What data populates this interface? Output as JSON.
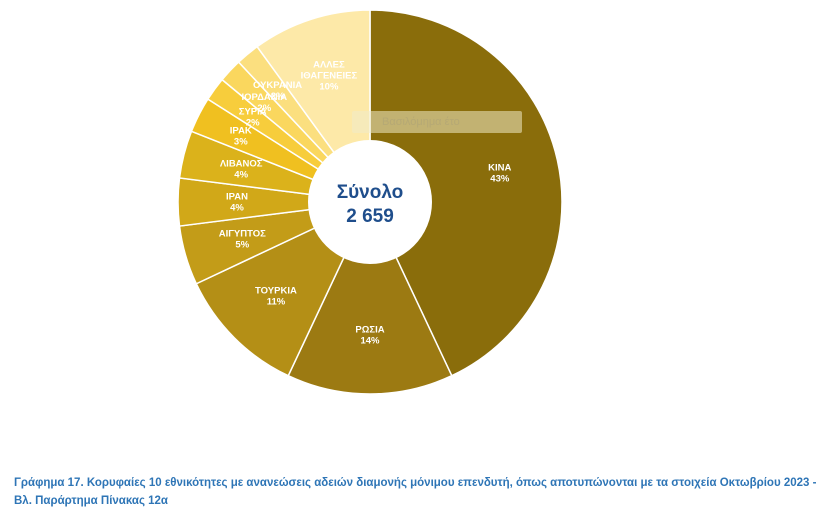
{
  "chart_data": {
    "type": "pie",
    "subtype": "donut",
    "center_title": "Σύνολο",
    "center_value": "2 659",
    "slices": [
      {
        "label": "ΚΙΝΑ",
        "percent_label": "43%",
        "value": 43,
        "color": "#8a6d0b",
        "label_color": "#ffffff"
      },
      {
        "label": "ΡΩΣΙΑ",
        "percent_label": "14%",
        "value": 14,
        "color": "#9c7a12",
        "label_color": "#ffffff"
      },
      {
        "label": "ΤΟΥΡΚΙΑ",
        "percent_label": "11%",
        "value": 11,
        "color": "#b48f16",
        "label_color": "#ffffff"
      },
      {
        "label": "ΑΙΓΥΠΤΟΣ",
        "percent_label": "5%",
        "value": 5,
        "color": "#c39c18",
        "label_color": "#ffffff"
      },
      {
        "label": "ΙΡΑΝ",
        "percent_label": "4%",
        "value": 4,
        "color": "#d1a818",
        "label_color": "#ffffff"
      },
      {
        "label": "ΛΙΒΑΝΟΣ",
        "percent_label": "4%",
        "value": 4,
        "color": "#dbb21b",
        "label_color": "#ffffff"
      },
      {
        "label": "ΙΡΑΚ",
        "percent_label": "3%",
        "value": 3,
        "color": "#f0c020",
        "label_color": "#ffffff"
      },
      {
        "label": "ΣΥΡΙΑ",
        "percent_label": "2%",
        "value": 2,
        "color": "#f7cd3c",
        "label_color": "#ffffff"
      },
      {
        "label": "ΙΟΡΔΑΝΙΑ",
        "percent_label": "2%",
        "value": 2,
        "color": "#fad75e",
        "label_color": "#ffffff"
      },
      {
        "label": "ΟΥΚΡΑΝΙΑ",
        "percent_label": "2%",
        "value": 2,
        "color": "#fbdf7f",
        "label_color": "#ffffff"
      },
      {
        "label": "ΑΛΛΕΣ ΙΘΑΓΕΝΕΙΕΣ",
        "percent_label": "10%",
        "value": 10,
        "color": "#fde9a8",
        "label_color": "#ffffff"
      }
    ]
  },
  "watermark": "Βασιλόμημα έτο",
  "caption": "Γράφημα 17. Κορυφαίες 10 εθνικότητες με ανανεώσεις αδειών διαμονής μόνιμου επενδυτή, όπως αποτυπώνονται με τα στοιχεία Οκτωβρίου 2023 - Βλ. Παράρτημα Πίνακας 12α"
}
